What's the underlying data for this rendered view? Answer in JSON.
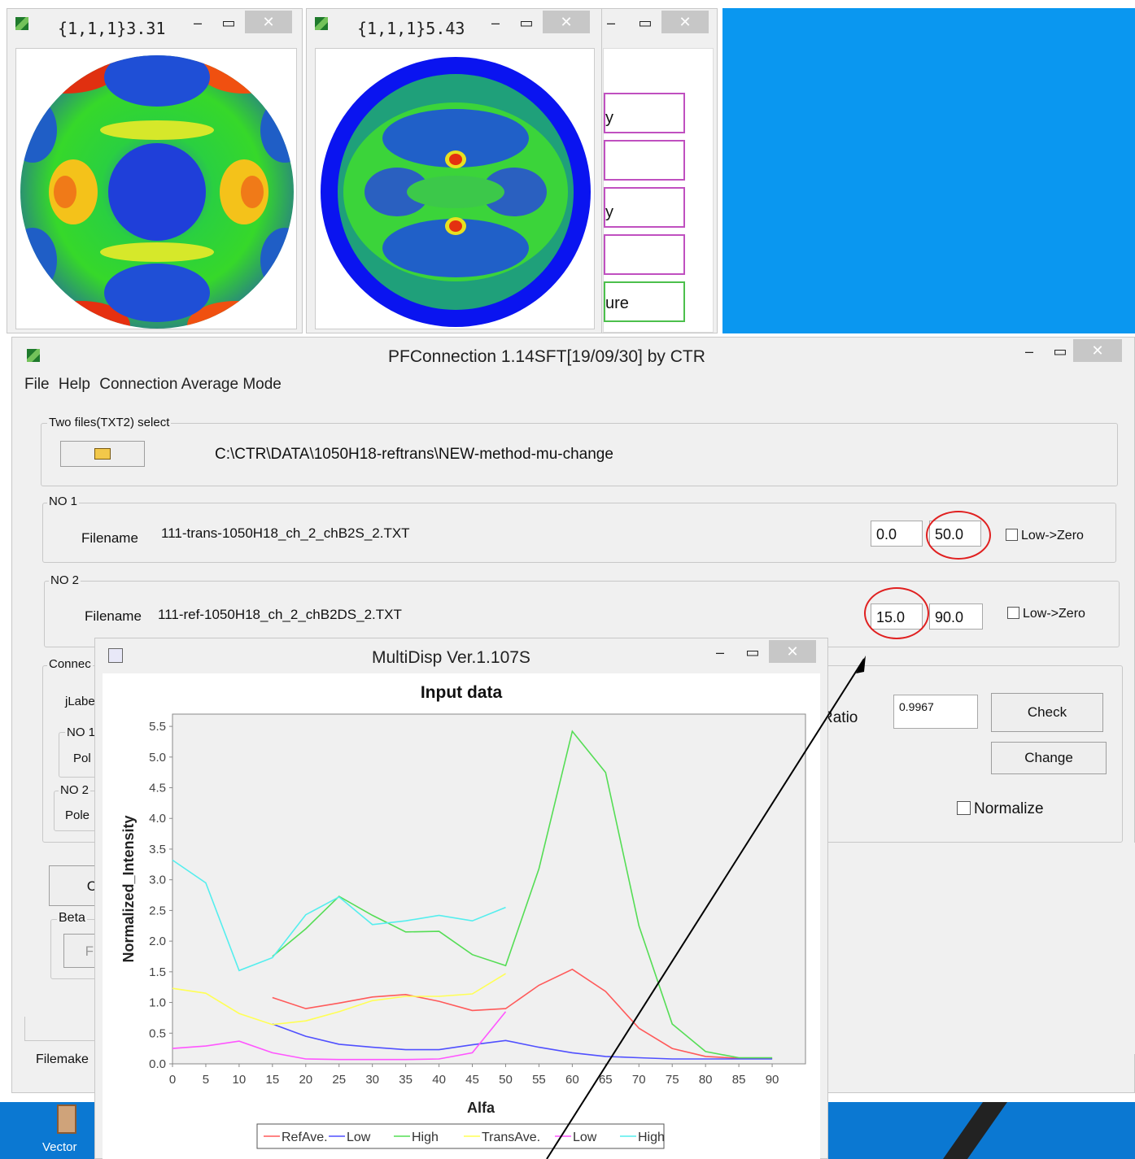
{
  "pole_windows": [
    {
      "title": "{1,1,1}3.31",
      "minimize": "–",
      "maximize": "▭",
      "close": "✕"
    },
    {
      "title": "{1,1,1}5.43",
      "minimize": "–",
      "maximize": "▭",
      "close": "✕"
    }
  ],
  "background_window": {
    "minimize": "–",
    "maximize": "▭",
    "close": "✕",
    "fragments": [
      "y",
      "",
      "y",
      "",
      "ure",
      ""
    ]
  },
  "pfconnection": {
    "title": "PFConnection 1.14SFT[19/09/30] by CTR",
    "menu": [
      "File",
      "Help",
      "Connection Average Mode"
    ],
    "two_files": {
      "legend": "Two files(TXT2) select",
      "folder_icon": "folder-open-icon",
      "path": "C:\\CTR\\DATA\\1050H18-reftrans\\NEW-method-mu-change"
    },
    "no1": {
      "legend": "NO 1",
      "filename_label": "Filename",
      "filename": "111-trans-1050H18_ch_2_chB2S_2.TXT",
      "min": "0.0",
      "max": "50.0",
      "low_zero": "Low->Zero"
    },
    "no2": {
      "legend": "NO 2",
      "filename_label": "Filename",
      "filename": "111-ref-1050H18_ch_2_chB2DS_2.TXT",
      "min": "15.0",
      "max": "90.0",
      "low_zero": "Low->Zero"
    },
    "connect": {
      "legend": "Connec",
      "jlabel": "jLabe",
      "no1_legend": "NO 1",
      "no1_pole": "Pol",
      "no2_legend": "NO 2",
      "no2_pole": "Pole",
      "ratio_label": "Ratio",
      "ratio_value": "0.9967",
      "check_button": "Check",
      "change_button": "Change",
      "normalize": "Normalize"
    },
    "lower_button": "C",
    "beta_legend": "Beta",
    "beta_button": "F",
    "filemake_label": "Filemake"
  },
  "multidisp": {
    "title": "MultiDisp Ver.1.107S",
    "minimize": "–",
    "maximize": "▭",
    "close": "✕"
  },
  "taskbar": {
    "label": "Vector"
  },
  "chart_data": {
    "type": "line",
    "title": "Input data",
    "xlabel": "Alfa",
    "ylabel": "Normalized_Intensity",
    "xlim": [
      0,
      95
    ],
    "ylim": [
      0,
      5.7
    ],
    "xticks": [
      "0",
      "5",
      "10",
      "15",
      "20",
      "25",
      "30",
      "35",
      "40",
      "45",
      "50",
      "55",
      "60",
      "65",
      "70",
      "75",
      "80",
      "85",
      "90"
    ],
    "yticks": [
      "0.0",
      "0.5",
      "1.0",
      "1.5",
      "2.0",
      "2.5",
      "3.0",
      "3.5",
      "4.0",
      "4.5",
      "5.0",
      "5.5"
    ],
    "legend_position": "bottom",
    "series": [
      {
        "name": "RefAve.",
        "color": "#ff5a5a",
        "x": [
          15,
          20,
          25,
          30,
          35,
          40,
          45,
          50,
          55,
          60,
          65,
          70,
          75,
          80,
          85,
          90
        ],
        "y": [
          1.08,
          0.9,
          0.99,
          1.09,
          1.13,
          1.02,
          0.87,
          0.9,
          1.28,
          1.54,
          1.18,
          0.58,
          0.25,
          0.12,
          0.09,
          0.09
        ]
      },
      {
        "name": "Low",
        "color": "#5050ff",
        "x": [
          15,
          20,
          25,
          30,
          35,
          40,
          45,
          50,
          55,
          60,
          65,
          70,
          75,
          80,
          85,
          90
        ],
        "y": [
          0.65,
          0.45,
          0.32,
          0.27,
          0.23,
          0.23,
          0.31,
          0.38,
          0.27,
          0.18,
          0.12,
          0.1,
          0.08,
          0.08,
          0.08,
          0.08
        ]
      },
      {
        "name": "High",
        "color": "#55dd55",
        "x": [
          15,
          20,
          25,
          30,
          35,
          40,
          45,
          50,
          55,
          60,
          65,
          70,
          75,
          80,
          85,
          90
        ],
        "y": [
          1.75,
          2.2,
          2.73,
          2.42,
          2.15,
          2.16,
          1.78,
          1.6,
          3.18,
          5.42,
          4.75,
          2.25,
          0.65,
          0.2,
          0.1,
          0.1
        ]
      },
      {
        "name": "TransAve.",
        "color": "#ffff55",
        "x": [
          0,
          5,
          10,
          15,
          20,
          25,
          30,
          35,
          40,
          45,
          50
        ],
        "y": [
          1.23,
          1.15,
          0.82,
          0.64,
          0.7,
          0.85,
          1.03,
          1.1,
          1.1,
          1.14,
          1.47
        ]
      },
      {
        "name": "Low",
        "color": "#ff55ff",
        "x": [
          0,
          5,
          10,
          15,
          20,
          25,
          30,
          35,
          40,
          45,
          50
        ],
        "y": [
          0.25,
          0.29,
          0.37,
          0.18,
          0.08,
          0.07,
          0.07,
          0.07,
          0.08,
          0.18,
          0.85
        ]
      },
      {
        "name": "High",
        "color": "#55eeee",
        "x": [
          0,
          5,
          10,
          15,
          20,
          25,
          30,
          35,
          40,
          45,
          50
        ],
        "y": [
          3.32,
          2.95,
          1.52,
          1.73,
          2.43,
          2.72,
          2.27,
          2.33,
          2.42,
          2.33,
          2.55
        ]
      }
    ]
  }
}
